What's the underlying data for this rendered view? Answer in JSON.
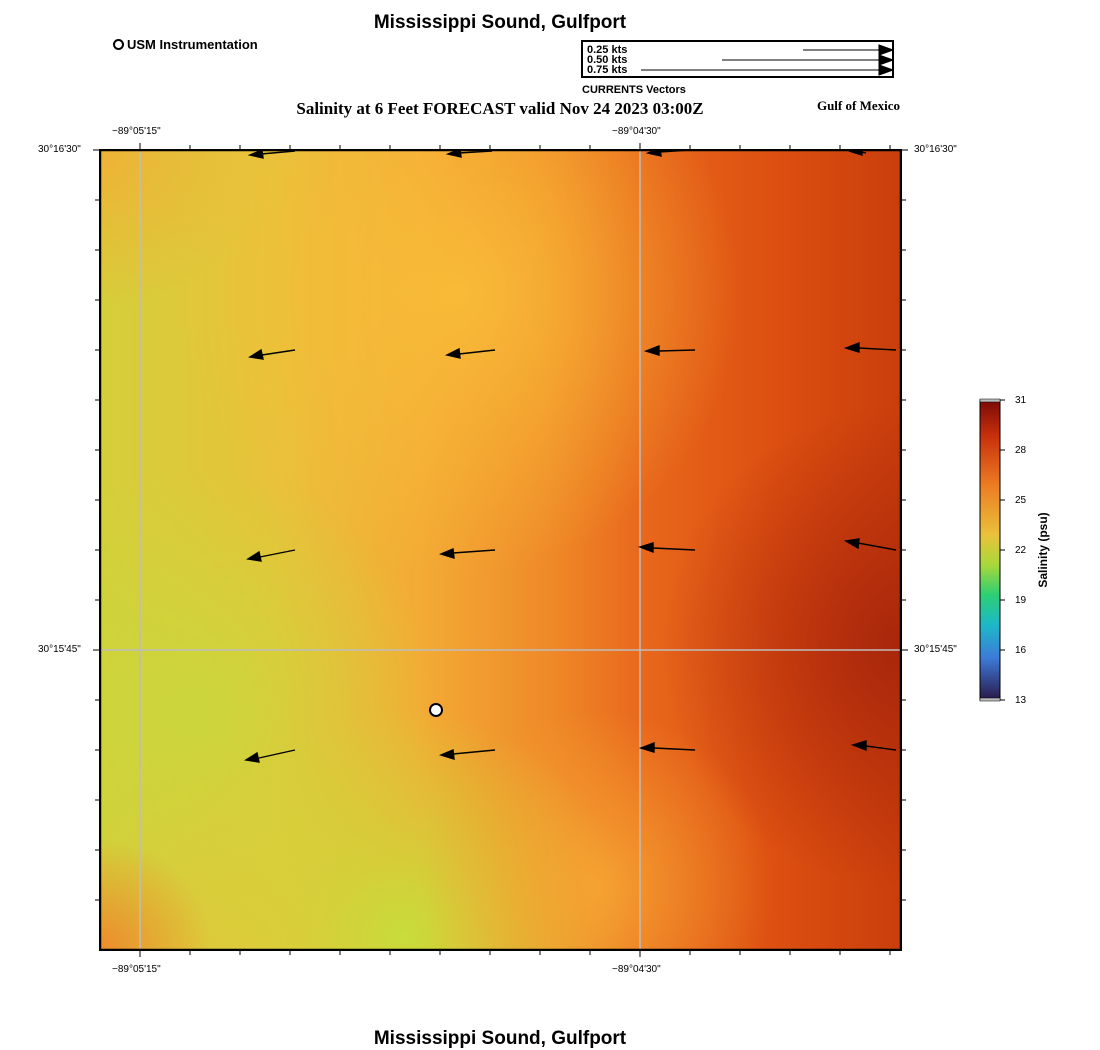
{
  "title": "Mississippi Sound, Gulfport",
  "bottom_title": "Mississippi Sound, Gulfport",
  "subtitle": "Salinity at 6 Feet FORECAST valid Nov 24 2023 03:00Z",
  "region_label": "Gulf of Mexico",
  "station_legend": "USM Instrumentation",
  "vector_legend": {
    "caption": "CURRENTS Vectors",
    "items": [
      {
        "label": "0.25 kts",
        "speed_kts": 0.25
      },
      {
        "label": "0.50 kts",
        "speed_kts": 0.5
      },
      {
        "label": "0.75 kts",
        "speed_kts": 0.75
      }
    ]
  },
  "axes": {
    "lon_ticks": [
      "−89°05'15\"",
      "−89°04'30\""
    ],
    "lat_ticks": [
      "30°16'30\"",
      "30°15'45\""
    ]
  },
  "colorbar": {
    "label": "Salinity (psu)",
    "ticks": [
      "31",
      "28",
      "25",
      "22",
      "19",
      "16",
      "13"
    ],
    "range": [
      13,
      31
    ]
  },
  "colors": {
    "low": "#c8dc3a",
    "mid": "#f7b436",
    "high": "#e04a0e",
    "max": "#a8250c"
  }
}
